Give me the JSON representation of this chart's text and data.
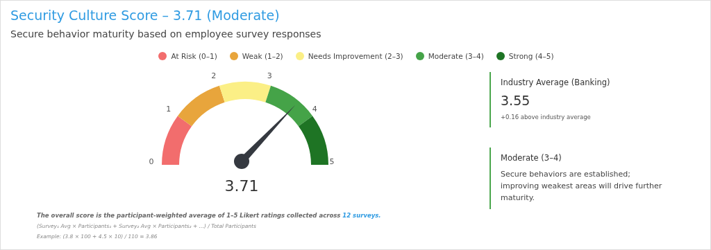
{
  "chart_data": [
    {
      "type": "donut",
      "title": "Security Culture Score – 3.71 (Moderate)",
      "subtitle": "Secure behavior maturity based on employee survey responses",
      "categories": [
        "At Risk (0–1)",
        "Weak (1–2)",
        "Needs Improvement (2–3)",
        "Moderate (3–4)",
        "Strong (4–5)"
      ],
      "values": [
        20,
        20,
        20,
        20,
        20
      ],
      "colors": [
        "#f26d6d",
        "#e8a53c",
        "#fbef86",
        "#45a348",
        "#1e7424"
      ],
      "needle": "Moderate (3–4)",
      "legend": "top",
      "annotations": [
        "0",
        "1",
        "2",
        "3",
        "4",
        "5",
        "3.71",
        "The overall score is the participant-weighted average of 1–5 Likert ratings collected across",
        "12 surveys.",
        "(Survey₁ Avg × Participants₁ + Survey₂ Avg × Participants₂ + …) / Total Participants",
        "Example: (3.8 × 100 + 4.5 × 10) / 110 = 3.86"
      ]
    },
    {
      "type": "other",
      "title": "Industry Average (Banking)",
      "annotations": [
        "3.55",
        "+0.16 above industry average"
      ]
    },
    {
      "type": "other",
      "title": "Moderate (3–4)",
      "annotations": [
        "Secure behaviors are established; improving weakest areas will drive further maturity."
      ]
    }
  ]
}
